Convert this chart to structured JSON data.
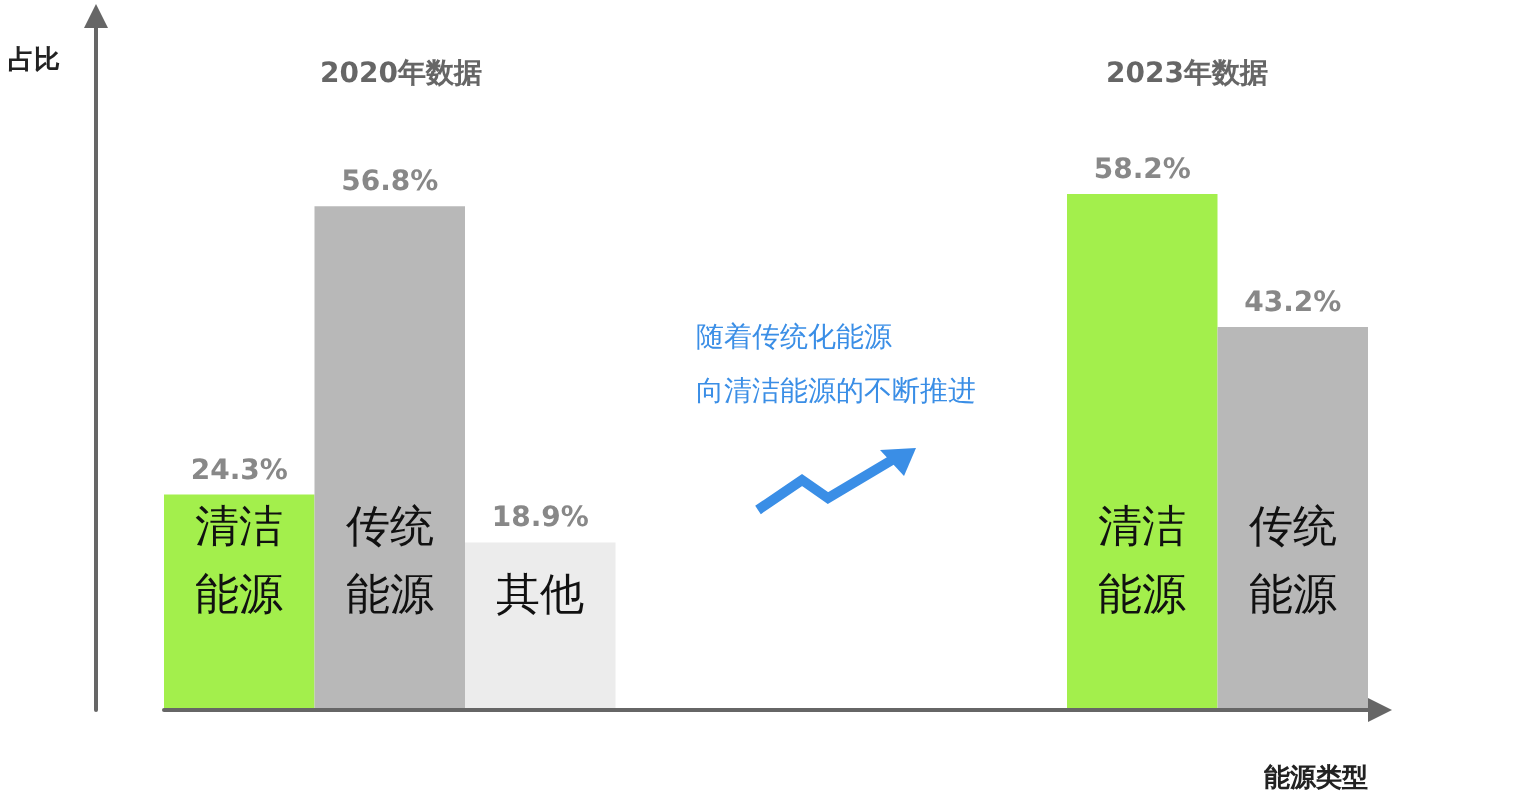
{
  "chart_data": {
    "type": "bar",
    "xlabel": "能源类型",
    "categories": [
      "清洁能源",
      "传统能源",
      "其他",
      null,
      null,
      null,
      "清洁能源",
      "传统能源"
    ],
    "values": [
      24.3,
      56.8,
      18.9,
      null,
      null,
      null,
      58.2,
      43.2
    ],
    "colors": [
      "#a3ef4c",
      "#b8b8b8",
      "#ececec",
      null,
      null,
      null,
      "#a3ef4c",
      "#b8b8b8"
    ],
    "value_labels": [
      "24.3%",
      "56.8%",
      "18.9%",
      null,
      null,
      null,
      "58.2%",
      "43.2%"
    ],
    "annotations": [
      "2020年数据",
      "2023年数据",
      "随着传统化能源",
      "向清洁能源的不断推进",
      "占比"
    ],
    "grid": false
  }
}
